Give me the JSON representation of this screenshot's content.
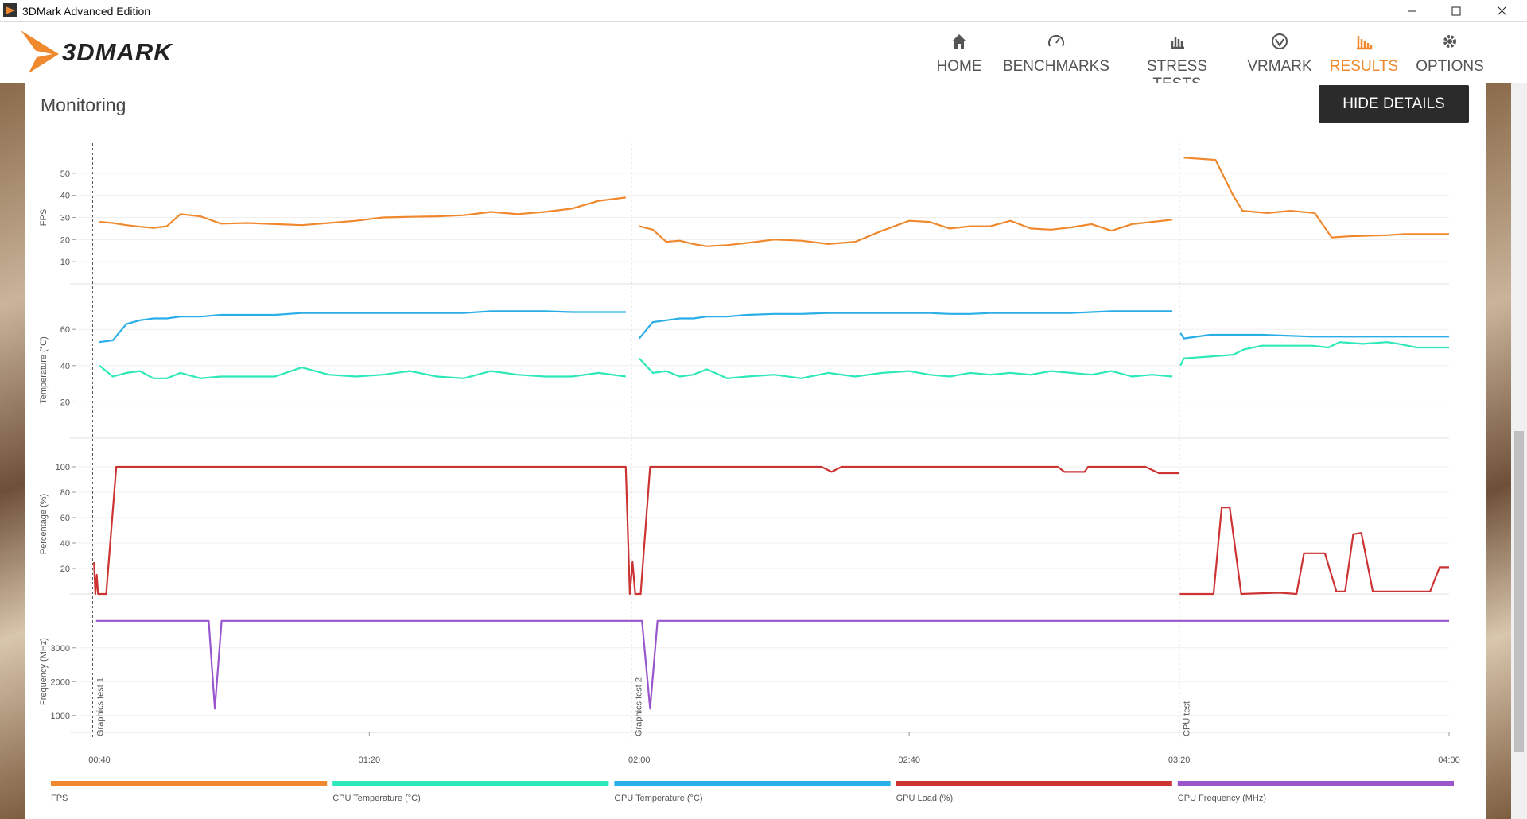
{
  "window": {
    "title": "3DMark Advanced Edition"
  },
  "logo": "3DMARK",
  "nav": [
    {
      "label": "HOME"
    },
    {
      "label": "BENCHMARKS"
    },
    {
      "label": "STRESS TESTS"
    },
    {
      "label": "VRMARK"
    },
    {
      "label": "RESULTS"
    },
    {
      "label": "OPTIONS"
    }
  ],
  "section": {
    "title": "Monitoring",
    "button": "HIDE DETAILS"
  },
  "test_markers": [
    {
      "x": 39,
      "label": "Graphics test 1"
    },
    {
      "x": 118.8,
      "label": "Graphics test 2"
    },
    {
      "x": 200,
      "label": "CPU test"
    }
  ],
  "chart_data": [
    {
      "type": "line",
      "ylabel": "FPS",
      "xlim": [
        38,
        240
      ],
      "ylim": [
        0,
        60
      ],
      "yticks": [
        10,
        20,
        30,
        40,
        50
      ],
      "grid": true,
      "x": [
        40,
        42,
        44,
        46,
        48,
        50,
        52,
        55,
        58,
        62,
        66,
        70,
        74,
        78,
        82,
        86,
        90,
        94,
        98,
        102,
        106,
        110,
        114,
        118,
        119,
        120,
        122,
        124,
        126,
        128,
        130,
        133,
        136,
        140,
        144,
        148,
        152,
        156,
        160,
        163,
        166,
        169,
        172,
        175,
        178,
        181,
        184,
        187,
        190,
        193,
        196,
        199,
        200,
        200.7,
        205.4,
        208,
        209.4,
        213.1,
        216.5,
        220.1,
        222.6,
        225.2,
        230.8,
        233.4,
        240
      ],
      "series": [
        {
          "name": "FPS",
          "color": "#f0892e",
          "values": [
            28,
            27.5,
            26.5,
            25.8,
            25.3,
            26,
            31.5,
            30.5,
            27.2,
            27.5,
            27,
            26.5,
            27.5,
            28.5,
            30,
            30.3,
            30.5,
            31,
            32.5,
            31.5,
            32.5,
            34,
            37.5,
            39,
            null,
            26,
            24.5,
            19,
            19.5,
            18,
            17,
            17.5,
            18.5,
            20,
            19.5,
            18,
            19,
            24,
            28.5,
            28,
            25,
            26,
            26,
            28.5,
            25,
            24.5,
            25.5,
            27,
            24,
            27,
            28,
            29,
            null,
            57,
            56,
            40,
            33,
            32,
            33,
            32,
            21,
            21.5,
            22,
            22.5,
            22.5
          ]
        }
      ]
    },
    {
      "type": "line",
      "ylabel": "Temperature (°C)",
      "xlim": [
        38,
        240
      ],
      "ylim": [
        0,
        75
      ],
      "yticks": [
        20,
        40,
        60
      ],
      "grid": true,
      "x": [
        40,
        42,
        44,
        46,
        48,
        50,
        52,
        55,
        58,
        62,
        66,
        70,
        74,
        78,
        82,
        86,
        90,
        94,
        98,
        102,
        106,
        110,
        114,
        118,
        119,
        120,
        122,
        124,
        126,
        128,
        130,
        133,
        136,
        140,
        144,
        148,
        152,
        156,
        160,
        163,
        166,
        169,
        172,
        175,
        178,
        181,
        184,
        187,
        190,
        193,
        196,
        199,
        200,
        200.2,
        200.7,
        204.6,
        208,
        209.7,
        212.3,
        219.7,
        222.1,
        223.8,
        227.2,
        230.8,
        232.5,
        235.2,
        240
      ],
      "series": [
        {
          "name": "CPU Temperature (°C)",
          "color": "#2de8b8",
          "values": [
            40,
            34,
            36,
            37,
            33,
            33,
            36,
            33,
            34,
            34,
            34,
            39,
            35,
            34,
            35,
            37,
            34,
            33,
            37,
            35,
            34,
            34,
            36,
            34,
            null,
            44,
            36,
            37,
            34,
            35,
            38,
            33,
            34,
            35,
            33,
            36,
            34,
            36,
            37,
            35,
            34,
            36,
            35,
            36,
            35,
            37,
            36,
            35,
            37,
            34,
            35,
            34,
            null,
            40,
            44,
            45,
            46,
            49,
            51,
            51,
            50,
            53,
            52,
            53,
            52,
            50,
            50
          ]
        },
        {
          "name": "GPU Temperature (°C)",
          "color": "#2aaee8",
          "values": [
            53,
            54,
            63,
            65,
            66,
            66,
            67,
            67,
            68,
            68,
            68,
            69,
            69,
            69,
            69,
            69,
            69,
            69,
            70,
            70,
            70,
            69.5,
            69.5,
            69.5,
            null,
            55,
            64,
            65,
            66,
            66,
            67,
            67,
            68,
            68.5,
            68.5,
            69,
            69,
            69,
            69,
            69,
            68.5,
            68.5,
            69,
            69,
            69,
            69,
            69,
            69.5,
            70,
            70,
            70,
            70,
            null,
            58,
            55,
            57,
            57,
            57,
            57,
            56,
            56,
            56,
            56,
            56,
            56,
            56,
            56
          ]
        }
      ]
    },
    {
      "type": "line",
      "ylabel": "Percentage (%)",
      "xlim": [
        38,
        240
      ],
      "ylim": [
        0,
        110
      ],
      "yticks": [
        20,
        40,
        60,
        80,
        100
      ],
      "grid": true,
      "x": [
        39.2,
        39.4,
        39.6,
        39.8,
        41,
        42.5,
        118,
        118.6,
        119,
        119.4,
        120.2,
        121.6,
        147,
        148.5,
        150,
        182,
        183,
        186,
        186.5,
        195,
        197,
        200,
        200.05,
        200.1,
        205.1,
        206.3,
        207.5,
        209.2,
        214.8,
        217.4,
        218.5,
        221.6,
        223.3,
        224.6,
        225.8,
        227,
        228.7,
        237.2,
        238.6,
        240
      ],
      "series": [
        {
          "name": "GPU Load (%)",
          "color": "#cc3333",
          "values": [
            25,
            0,
            15,
            0,
            0,
            100,
            100,
            0,
            25,
            0,
            0,
            100,
            100,
            96,
            100,
            100,
            96,
            96,
            100,
            100,
            95,
            95,
            null,
            0,
            0,
            68,
            68,
            0,
            1,
            0,
            32,
            32,
            2,
            2,
            47,
            48,
            2,
            2,
            21,
            21
          ]
        }
      ]
    },
    {
      "type": "line",
      "ylabel": "Frequency (MHz)",
      "xlim": [
        38,
        240
      ],
      "ylim": [
        500,
        4100
      ],
      "yticks": [
        1000,
        2000,
        3000
      ],
      "grid": true,
      "x": [
        39.5,
        56.2,
        57.1,
        58.1,
        118.6,
        119,
        120.4,
        121.6,
        122.7,
        240
      ],
      "xticks": [
        {
          "value": 40,
          "label": "00:40"
        },
        {
          "value": 80,
          "label": "01:20"
        },
        {
          "value": 120,
          "label": "02:00"
        },
        {
          "value": 160,
          "label": "02:40"
        },
        {
          "value": 200,
          "label": "03:20"
        },
        {
          "value": 240,
          "label": "04:00"
        }
      ],
      "series": [
        {
          "name": "CPU Frequency (MHz)",
          "color": "#9955cc",
          "values": [
            3800,
            3800,
            1200,
            3800,
            3800,
            3800,
            3800,
            1200,
            3800,
            3800
          ]
        }
      ]
    }
  ]
}
